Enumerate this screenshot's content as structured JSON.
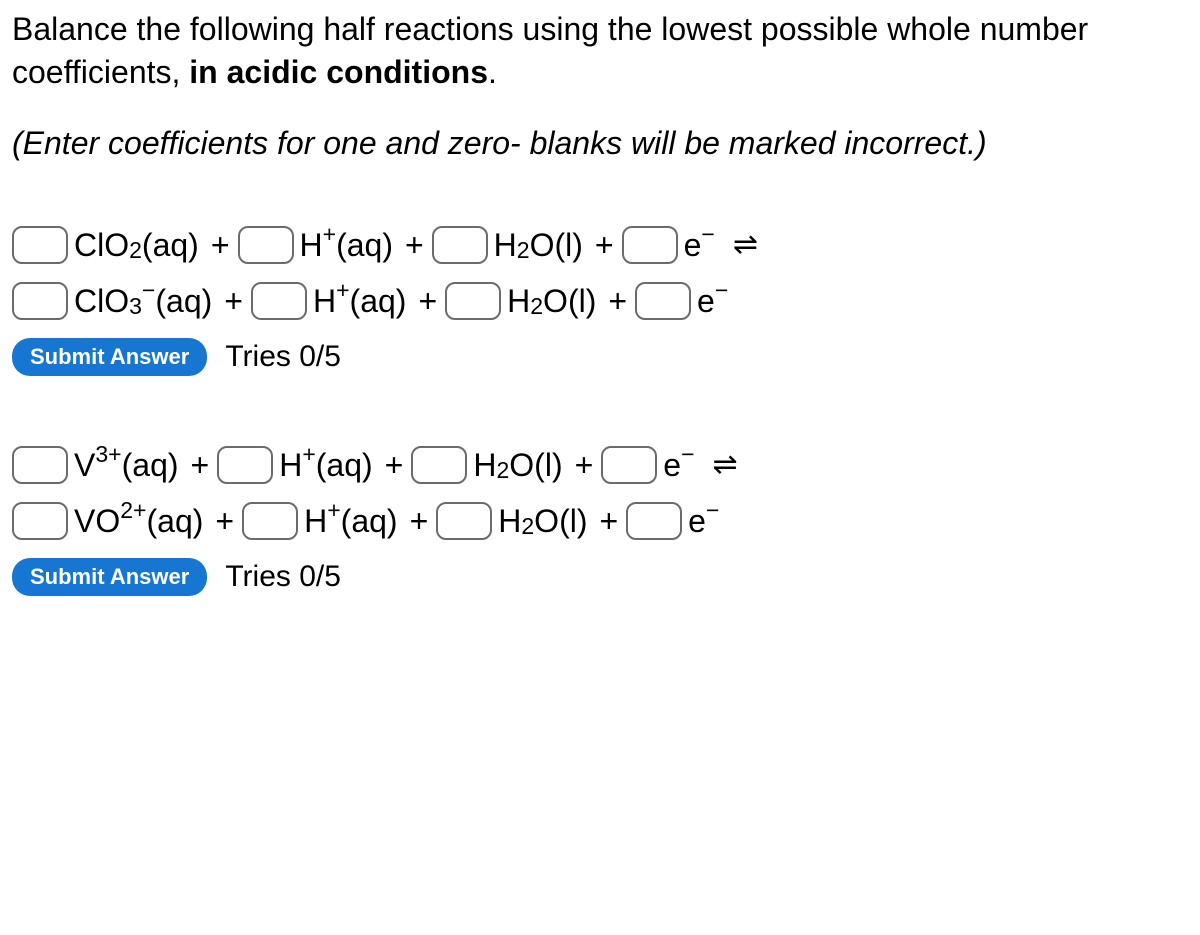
{
  "prompt": {
    "line1": "Balance the following half reactions using the lowest possible whole number coefficients, ",
    "bold": "in acidic conditions",
    "end": "."
  },
  "hint": "(Enter coefficients for one and zero- blanks will be marked incorrect.)",
  "labels": {
    "submit": "Submit Answer",
    "tries1": "Tries 0/5",
    "tries2": "Tries 0/5",
    "plus": "+",
    "equil": "⇌"
  },
  "species": {
    "clo2": {
      "base": "ClO",
      "sub": "2",
      "phase": "(aq)"
    },
    "clo3": {
      "base": "ClO",
      "sub": "3",
      "sup": "−",
      "phase": "(aq)"
    },
    "hplus": {
      "base": "H",
      "sup": "+",
      "phase": "(aq)"
    },
    "h2o": {
      "base": "H",
      "sub": "2",
      "rest": "O(l)"
    },
    "e": {
      "base": "e",
      "sup": "−"
    },
    "v3": {
      "base": "V",
      "sup": "3+",
      "phase": "(aq)"
    },
    "vo2": {
      "base": "VO",
      "sup": "2+",
      "phase": "(aq)"
    }
  },
  "style": {
    "font_size_body": 32,
    "input_border_color": "#6b6b6b",
    "input_border_radius": 10,
    "submit_bg": "#1676d2",
    "submit_color": "#ffffff"
  }
}
